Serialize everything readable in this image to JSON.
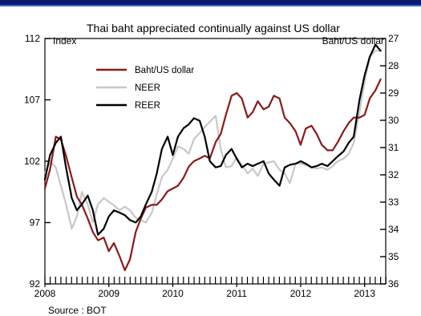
{
  "colors": {
    "band": "#0d1a70",
    "band_rule": "#3c64c8",
    "axis": "#000000",
    "baht": "#8b1a1a",
    "neer": "#c8c8c8",
    "reer": "#000000",
    "text": "#000000"
  },
  "chart_data": {
    "type": "line",
    "title": "Thai baht appreciated continually against US dollar",
    "source": "Source : BOT",
    "left_axis": {
      "label": "Index",
      "ylim": [
        92,
        112
      ],
      "ticks": [
        92,
        97,
        102,
        107,
        112
      ]
    },
    "right_axis": {
      "label": "Baht/US dollar",
      "ylim": [
        36,
        27
      ],
      "ticks": [
        27,
        28,
        29,
        30,
        31,
        32,
        33,
        34,
        35,
        36
      ],
      "inverted": true
    },
    "x_axis": {
      "xlim": [
        2008.0,
        2013.33
      ],
      "ticks": [
        "2008",
        "2009",
        "2010",
        "2011",
        "2012",
        "2013"
      ]
    },
    "legend_position": "top-left",
    "grid": false,
    "series": [
      {
        "name": "Baht/US dollar",
        "axis": "right",
        "color_key": "baht",
        "x": [
          2008.0,
          2008.08,
          2008.17,
          2008.25,
          2008.33,
          2008.42,
          2008.5,
          2008.58,
          2008.67,
          2008.75,
          2008.83,
          2008.92,
          2009.0,
          2009.08,
          2009.17,
          2009.25,
          2009.33,
          2009.42,
          2009.5,
          2009.58,
          2009.67,
          2009.75,
          2009.83,
          2009.92,
          2010.0,
          2010.08,
          2010.17,
          2010.25,
          2010.33,
          2010.42,
          2010.5,
          2010.58,
          2010.67,
          2010.75,
          2010.83,
          2010.92,
          2011.0,
          2011.08,
          2011.17,
          2011.25,
          2011.33,
          2011.42,
          2011.5,
          2011.58,
          2011.67,
          2011.75,
          2011.83,
          2011.92,
          2012.0,
          2012.08,
          2012.17,
          2012.25,
          2012.33,
          2012.42,
          2012.5,
          2012.58,
          2012.67,
          2012.75,
          2012.83,
          2012.92,
          2013.0,
          2013.08,
          2013.17,
          2013.25
        ],
        "y": [
          32.5,
          31.8,
          30.6,
          30.7,
          31.3,
          32.1,
          32.8,
          33.1,
          33.6,
          34.1,
          34.4,
          34.3,
          34.8,
          34.5,
          35.0,
          35.5,
          35.1,
          34.1,
          33.6,
          33.2,
          33.1,
          33.1,
          32.9,
          32.6,
          32.5,
          32.4,
          32.1,
          31.7,
          31.5,
          31.4,
          31.3,
          31.4,
          30.8,
          30.5,
          29.8,
          29.1,
          29.0,
          29.2,
          29.9,
          29.7,
          29.3,
          29.6,
          29.5,
          29.1,
          29.2,
          29.9,
          30.1,
          30.4,
          30.9,
          30.3,
          30.2,
          30.5,
          30.9,
          31.1,
          31.1,
          30.8,
          30.4,
          30.1,
          29.9,
          29.9,
          29.8,
          29.2,
          28.9,
          28.5
        ]
      },
      {
        "name": "NEER",
        "axis": "left",
        "color_key": "neer",
        "x": [
          2008.0,
          2008.08,
          2008.17,
          2008.25,
          2008.33,
          2008.42,
          2008.5,
          2008.58,
          2008.67,
          2008.75,
          2008.83,
          2008.92,
          2009.0,
          2009.08,
          2009.17,
          2009.25,
          2009.33,
          2009.42,
          2009.5,
          2009.58,
          2009.67,
          2009.75,
          2009.83,
          2009.92,
          2010.0,
          2010.08,
          2010.17,
          2010.25,
          2010.33,
          2010.42,
          2010.5,
          2010.58,
          2010.67,
          2010.75,
          2010.83,
          2010.92,
          2011.0,
          2011.08,
          2011.17,
          2011.25,
          2011.33,
          2011.42,
          2011.5,
          2011.58,
          2011.67,
          2011.75,
          2011.83,
          2011.92,
          2012.0,
          2012.08,
          2012.17,
          2012.25,
          2012.33,
          2012.42,
          2012.5,
          2012.58,
          2012.67,
          2012.75,
          2012.83,
          2012.92,
          2013.0,
          2013.08,
          2013.17,
          2013.25
        ],
        "y": [
          101.0,
          102.0,
          101.5,
          100.0,
          98.5,
          96.5,
          97.5,
          99.5,
          98.5,
          97.0,
          98.5,
          99.0,
          98.7,
          98.4,
          98.0,
          98.3,
          98.0,
          97.4,
          97.2,
          97.0,
          97.8,
          99.3,
          100.7,
          101.3,
          102.2,
          103.2,
          103.0,
          102.6,
          103.8,
          104.3,
          104.8,
          105.2,
          105.7,
          103.0,
          101.5,
          101.6,
          102.3,
          101.7,
          101.0,
          101.4,
          100.8,
          101.8,
          101.9,
          102.0,
          101.3,
          101.0,
          100.2,
          101.8,
          101.8,
          101.7,
          101.5,
          101.4,
          101.5,
          101.3,
          101.6,
          102.0,
          102.2,
          102.6,
          103.5,
          106.0,
          108.5,
          110.5,
          111.0,
          111.0
        ]
      },
      {
        "name": "REER",
        "axis": "left",
        "color_key": "reer",
        "x": [
          2008.0,
          2008.08,
          2008.17,
          2008.25,
          2008.33,
          2008.42,
          2008.5,
          2008.58,
          2008.67,
          2008.75,
          2008.83,
          2008.92,
          2009.0,
          2009.08,
          2009.17,
          2009.25,
          2009.33,
          2009.42,
          2009.5,
          2009.58,
          2009.67,
          2009.75,
          2009.83,
          2009.92,
          2010.0,
          2010.08,
          2010.17,
          2010.25,
          2010.33,
          2010.42,
          2010.5,
          2010.58,
          2010.67,
          2010.75,
          2010.83,
          2010.92,
          2011.0,
          2011.08,
          2011.17,
          2011.25,
          2011.33,
          2011.42,
          2011.5,
          2011.58,
          2011.67,
          2011.75,
          2011.83,
          2011.92,
          2012.0,
          2012.08,
          2012.17,
          2012.25,
          2012.33,
          2012.42,
          2012.5,
          2012.58,
          2012.67,
          2012.75,
          2012.83,
          2012.92,
          2013.0,
          2013.08,
          2013.17,
          2013.25
        ],
        "y": [
          100.5,
          102.5,
          103.5,
          104.0,
          101.5,
          99.0,
          98.0,
          98.5,
          99.2,
          98.0,
          96.0,
          96.5,
          97.5,
          98.0,
          97.8,
          97.6,
          97.2,
          97.0,
          97.5,
          98.5,
          99.5,
          101.0,
          103.0,
          104.0,
          102.5,
          104.0,
          104.7,
          105.0,
          105.5,
          105.3,
          104.0,
          102.0,
          101.5,
          101.6,
          102.5,
          103.0,
          102.2,
          101.5,
          101.8,
          101.6,
          101.8,
          102.0,
          101.0,
          100.5,
          100.0,
          101.5,
          101.7,
          101.8,
          102.0,
          101.8,
          101.5,
          101.6,
          101.8,
          101.6,
          102.0,
          102.4,
          102.8,
          103.5,
          104.0,
          107.0,
          109.0,
          110.5,
          111.5,
          111.0
        ]
      }
    ]
  }
}
